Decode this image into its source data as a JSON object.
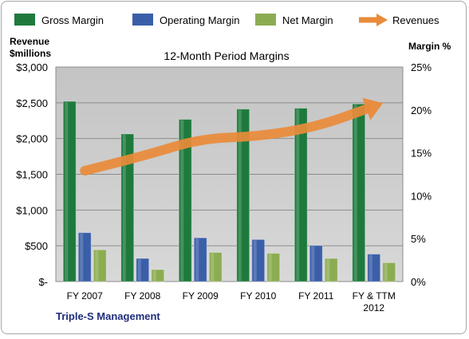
{
  "chart_data": {
    "type": "bar",
    "title": "12-Month Period Margins",
    "categories": [
      "FY 2007",
      "FY 2008",
      "FY 2009",
      "FY 2010",
      "FY 2011",
      "FY & TTM 2012"
    ],
    "category_lines": [
      [
        "FY 2007"
      ],
      [
        "FY 2008"
      ],
      [
        "FY 2009"
      ],
      [
        "FY 2010"
      ],
      [
        "FY 2011"
      ],
      [
        "FY & TTM",
        "2012"
      ]
    ],
    "series": [
      {
        "name": "Gross Margin",
        "axis": "right",
        "values": [
          21.0,
          17.2,
          18.9,
          20.1,
          20.2,
          20.7
        ],
        "color": "#1e7a3c"
      },
      {
        "name": "Operating Margin",
        "axis": "right",
        "values": [
          5.7,
          2.7,
          5.1,
          4.9,
          4.2,
          3.2
        ],
        "color": "#3a5fa8"
      },
      {
        "name": "Net Margin",
        "axis": "right",
        "values": [
          3.7,
          1.4,
          3.4,
          3.3,
          2.7,
          2.2
        ],
        "color": "#8cac52"
      },
      {
        "name": "Revenues",
        "axis": "left",
        "type": "line",
        "values": [
          1550,
          1750,
          2000,
          2030,
          2160,
          2450
        ],
        "color": "#e98b3a"
      }
    ],
    "left_axis": {
      "label_lines": [
        "Revenue",
        "$millions"
      ],
      "ylim": [
        0,
        3000
      ],
      "ticks": [
        0,
        500,
        1000,
        1500,
        2000,
        2500,
        3000
      ],
      "tick_labels": [
        "$-",
        "$500",
        "$1,000",
        "$1,500",
        "$2,000",
        "$2,500",
        "$3,000"
      ]
    },
    "right_axis": {
      "label": "Margin %",
      "ylim": [
        0,
        25
      ],
      "ticks": [
        0,
        5,
        10,
        15,
        20,
        25
      ],
      "tick_labels": [
        "0%",
        "5%",
        "10%",
        "15%",
        "20%",
        "25%"
      ]
    },
    "grid": true,
    "legend_position": "top",
    "plot_background": "#c0c0c0",
    "footer": "Triple-S Management"
  }
}
